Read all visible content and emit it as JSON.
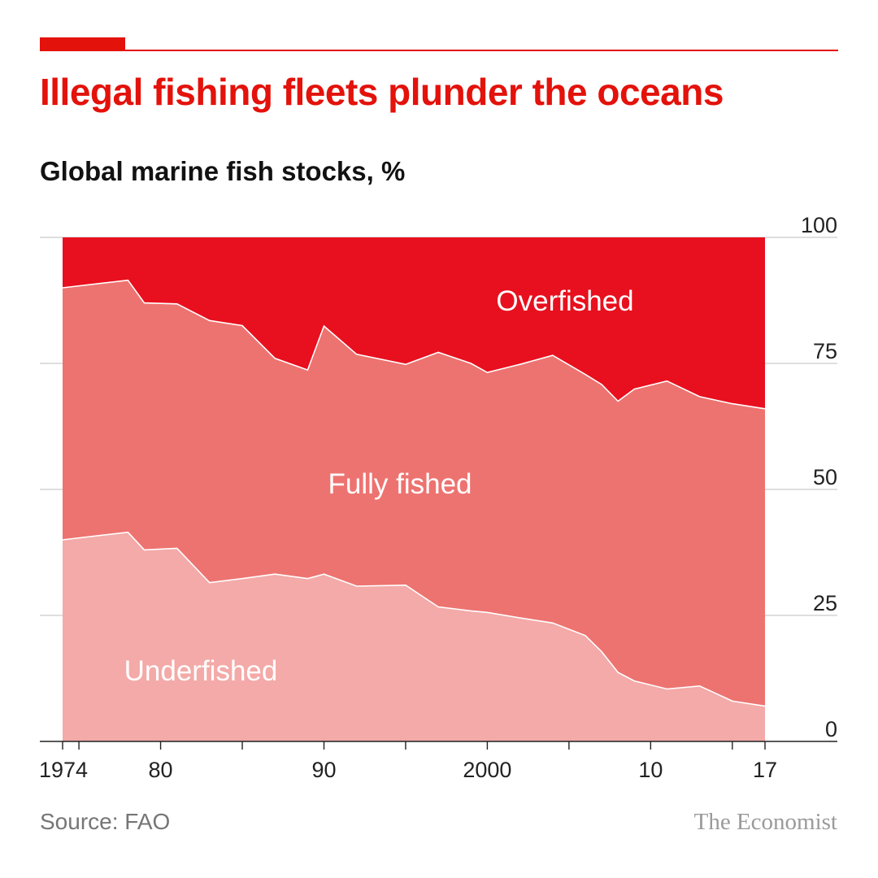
{
  "header": {
    "title": "Illegal fishing fleets plunder the oceans",
    "subtitle": "Global marine fish stocks, %"
  },
  "footer": {
    "source": "Source: FAO",
    "brand": "The Economist"
  },
  "colors": {
    "overfished": "#e8101e",
    "fully_fished": "#ed7370",
    "underfished": "#f3aaa8",
    "accent": "#e3120b"
  },
  "chart_data": {
    "type": "area",
    "stacked": true,
    "title": "Illegal fishing fleets plunder the oceans",
    "subtitle": "Global marine fish stocks, %",
    "x": [
      1974,
      1978,
      1979,
      1981,
      1983,
      1985,
      1987,
      1989,
      1990,
      1992,
      1995,
      1997,
      1999,
      2000,
      2002,
      2004,
      2006,
      2007,
      2008,
      2009,
      2011,
      2013,
      2015,
      2017
    ],
    "series": [
      {
        "name": "Underfished",
        "values": [
          40,
          41.5,
          38,
          38.3,
          31.5,
          32.3,
          33.2,
          32.3,
          33.2,
          30.8,
          31,
          26.7,
          25.9,
          25.6,
          24.5,
          23.5,
          21,
          17.8,
          13.7,
          12,
          10.4,
          11,
          8,
          7
        ]
      },
      {
        "name": "Fully fished",
        "values": [
          50,
          50,
          49,
          48.5,
          52,
          50.2,
          42.8,
          41.4,
          49.2,
          46,
          43.8,
          50.5,
          49.1,
          47.6,
          50.3,
          53.1,
          51.8,
          53,
          53.8,
          57.9,
          61.1,
          57.4,
          59,
          59
        ]
      },
      {
        "name": "Overfished",
        "values": [
          10,
          8.5,
          13,
          13.2,
          16.5,
          17.5,
          24,
          26.3,
          17.6,
          23.2,
          25.2,
          22.8,
          25,
          26.8,
          25.2,
          23.4,
          27.2,
          29.2,
          32.5,
          30.1,
          28.5,
          31.6,
          33,
          34
        ]
      }
    ],
    "yticks": [
      "0",
      "25",
      "50",
      "75",
      "100"
    ],
    "ytick_values": [
      0,
      25,
      50,
      75,
      100
    ],
    "xticks": [
      "1974",
      "80",
      "90",
      "2000",
      "10",
      "17"
    ],
    "xtick_values": [
      1974,
      1980,
      1990,
      2000,
      2010,
      2017
    ],
    "xlim": [
      1973,
      2018
    ],
    "ylim": [
      0,
      100
    ],
    "y_axis_side": "right",
    "grid": true,
    "area_labels": [
      "Overfished",
      "Fully fished",
      "Underfished"
    ]
  }
}
